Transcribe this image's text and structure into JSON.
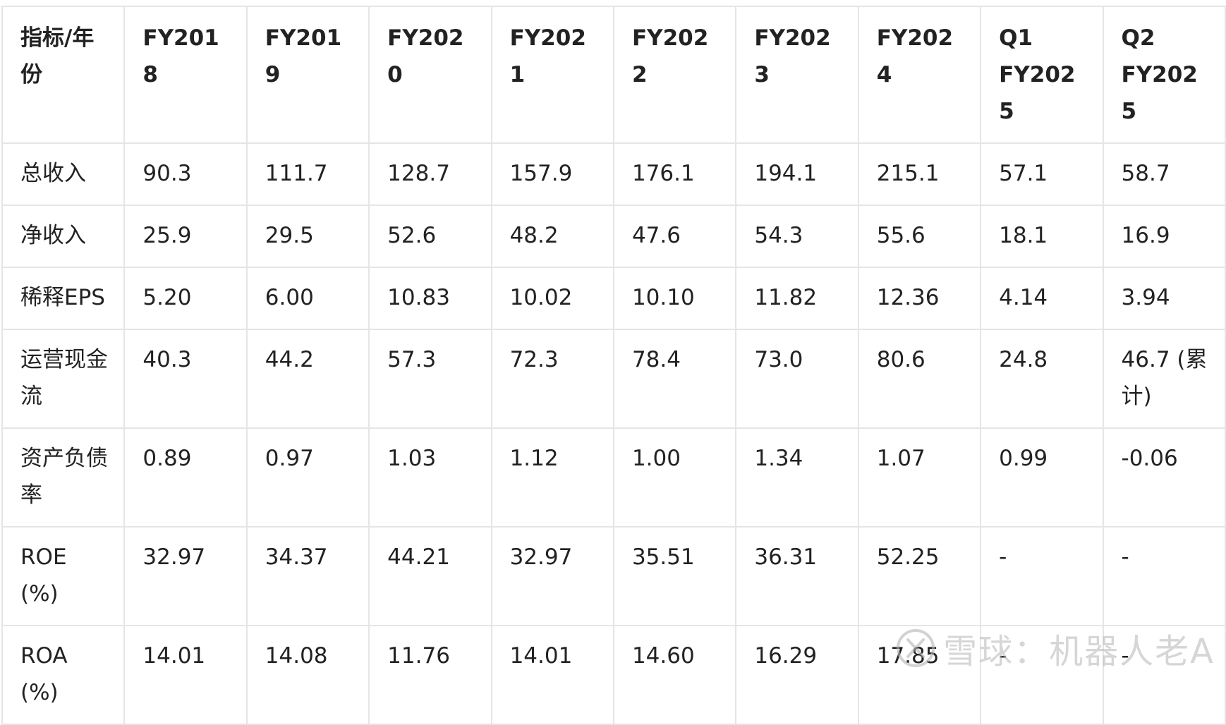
{
  "table": {
    "headers": [
      "指标/年份",
      "FY2018",
      "FY2019",
      "FY2020",
      "FY2021",
      "FY2022",
      "FY2023",
      "FY2024",
      "Q1 FY2025",
      "Q2 FY2025"
    ],
    "rows": [
      [
        "总收入",
        "90.3",
        "111.7",
        "128.7",
        "157.9",
        "176.1",
        "194.1",
        "215.1",
        "57.1",
        "58.7"
      ],
      [
        "净收入",
        "25.9",
        "29.5",
        "52.6",
        "48.2",
        "47.6",
        "54.3",
        "55.6",
        "18.1",
        "16.9"
      ],
      [
        "稀释EPS",
        "5.20",
        "6.00",
        "10.83",
        "10.02",
        "10.10",
        "11.82",
        "12.36",
        "4.14",
        "3.94"
      ],
      [
        "运营现金流",
        "40.3",
        "44.2",
        "57.3",
        "72.3",
        "78.4",
        "73.0",
        "80.6",
        "24.8",
        "46.7 (累计)"
      ],
      [
        "资产负债率",
        "0.89",
        "0.97",
        "1.03",
        "1.12",
        "1.00",
        "1.34",
        "1.07",
        "0.99",
        "-0.06"
      ],
      [
        "ROE (%)",
        "32.97",
        "34.37",
        "44.21",
        "32.97",
        "35.51",
        "36.31",
        "52.25",
        "-",
        "-"
      ],
      [
        "ROA (%)",
        "14.01",
        "14.08",
        "11.76",
        "14.01",
        "14.60",
        "16.29",
        "17.85",
        "-",
        "-"
      ]
    ]
  },
  "watermark": {
    "text": "雪球：机器人老A",
    "icon": "snowball-logo-icon"
  }
}
